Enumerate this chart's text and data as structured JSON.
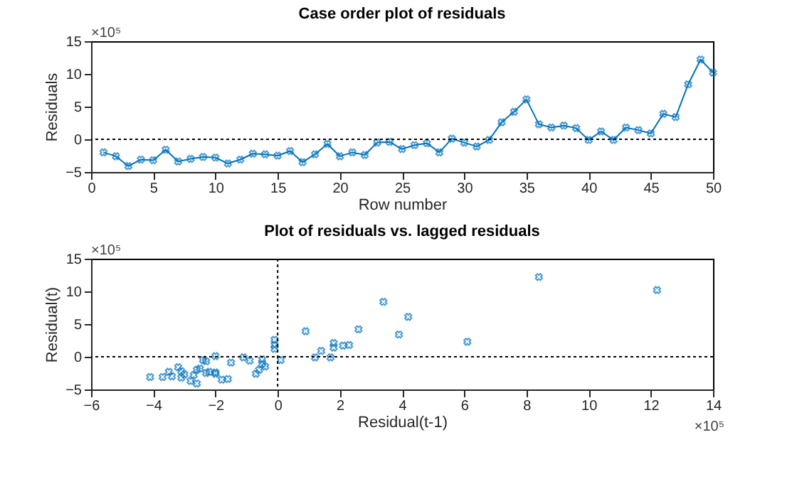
{
  "chart_data": [
    {
      "type": "line",
      "title": "Case order plot of residuals",
      "xlabel": "Row number",
      "ylabel": "Residuals",
      "xlim": [
        0,
        50
      ],
      "xticks": [
        0,
        5,
        10,
        15,
        20,
        25,
        30,
        35,
        40,
        45,
        50
      ],
      "ylim": [
        -5,
        15
      ],
      "yticks": [
        -5,
        0,
        5,
        10,
        15
      ],
      "marker": "cross",
      "line_style": "solid",
      "grid": false,
      "annotations": [
        "×10⁵"
      ],
      "ref_lines": [
        {
          "axis": "y",
          "value": 0,
          "label": null,
          "color": "#000000",
          "line_style": "dotted"
        }
      ],
      "x": [
        1,
        2,
        3,
        4,
        5,
        6,
        7,
        8,
        9,
        10,
        11,
        12,
        13,
        14,
        15,
        16,
        17,
        18,
        19,
        20,
        21,
        22,
        23,
        24,
        25,
        26,
        27,
        28,
        29,
        30,
        31,
        32,
        33,
        34,
        35,
        36,
        37,
        38,
        39,
        40,
        41,
        42,
        43,
        44,
        45,
        46,
        47,
        48,
        49,
        50
      ],
      "series": [
        {
          "color": "#0072bd",
          "values": [
            -2.0,
            -2.6,
            -4.1,
            -3.1,
            -3.2,
            -1.6,
            -3.4,
            -3.0,
            -2.7,
            -2.8,
            -3.7,
            -3.1,
            -2.2,
            -2.3,
            -2.5,
            -1.8,
            -3.5,
            -2.3,
            -0.7,
            -2.6,
            -2.0,
            -2.4,
            -0.5,
            -0.4,
            -1.5,
            -0.9,
            -0.6,
            -2.0,
            0.1,
            -0.5,
            -1.1,
            -0.1,
            2.6,
            4.2,
            6.1,
            2.3,
            1.8,
            2.1,
            1.7,
            -0.1,
            1.2,
            -0.1,
            1.8,
            1.4,
            0.9,
            3.9,
            3.4,
            8.4,
            12.2,
            10.2
          ]
        }
      ]
    },
    {
      "type": "scatter",
      "title": "Plot of residuals vs. lagged residuals",
      "xlabel": "Residual(t-1)",
      "ylabel": "Residual(t)",
      "xlim": [
        -6,
        14
      ],
      "xticks": [
        -6,
        -4,
        -2,
        0,
        2,
        4,
        6,
        8,
        10,
        12,
        14
      ],
      "ylim": [
        -5,
        15
      ],
      "yticks": [
        -5,
        0,
        5,
        10,
        15
      ],
      "marker": "cross",
      "grid": false,
      "annotations": [
        "×10⁵",
        "×10⁵"
      ],
      "ref_lines": [
        {
          "axis": "y",
          "value": 0,
          "label": null,
          "color": "#000000",
          "line_style": "dotted"
        },
        {
          "axis": "x",
          "value": 0,
          "label": null,
          "color": "#000000",
          "line_style": "dotted"
        }
      ],
      "series": [
        {
          "color": "#0072bd",
          "x": [
            -2.0,
            -2.6,
            -4.1,
            -3.1,
            -3.2,
            -1.6,
            -3.4,
            -3.0,
            -2.7,
            -2.8,
            -3.7,
            -3.1,
            -2.2,
            -2.3,
            -2.5,
            -1.8,
            -3.5,
            -2.3,
            -0.7,
            -2.6,
            -2.0,
            -2.4,
            -0.5,
            -0.4,
            -1.5,
            -0.9,
            -0.6,
            -2.0,
            0.1,
            -0.5,
            -1.1,
            -0.1,
            2.6,
            4.2,
            6.1,
            2.3,
            1.8,
            2.1,
            1.7,
            -0.1,
            1.2,
            -0.1,
            1.8,
            1.4,
            0.9,
            3.9,
            3.4,
            8.4,
            12.2
          ],
          "values": [
            -2.6,
            -4.1,
            -3.1,
            -3.2,
            -1.6,
            -3.4,
            -3.0,
            -2.7,
            -2.8,
            -3.7,
            -3.1,
            -2.2,
            -2.3,
            -2.5,
            -1.8,
            -3.5,
            -2.3,
            -0.7,
            -2.6,
            -2.0,
            -2.4,
            -0.5,
            -0.4,
            -1.5,
            -0.9,
            -0.6,
            -2.0,
            0.1,
            -0.5,
            -1.1,
            -0.1,
            2.6,
            4.2,
            6.1,
            2.3,
            1.8,
            2.1,
            1.7,
            -0.1,
            1.2,
            -0.1,
            1.8,
            1.4,
            0.9,
            3.9,
            3.4,
            8.4,
            12.2,
            10.2
          ]
        }
      ]
    }
  ]
}
